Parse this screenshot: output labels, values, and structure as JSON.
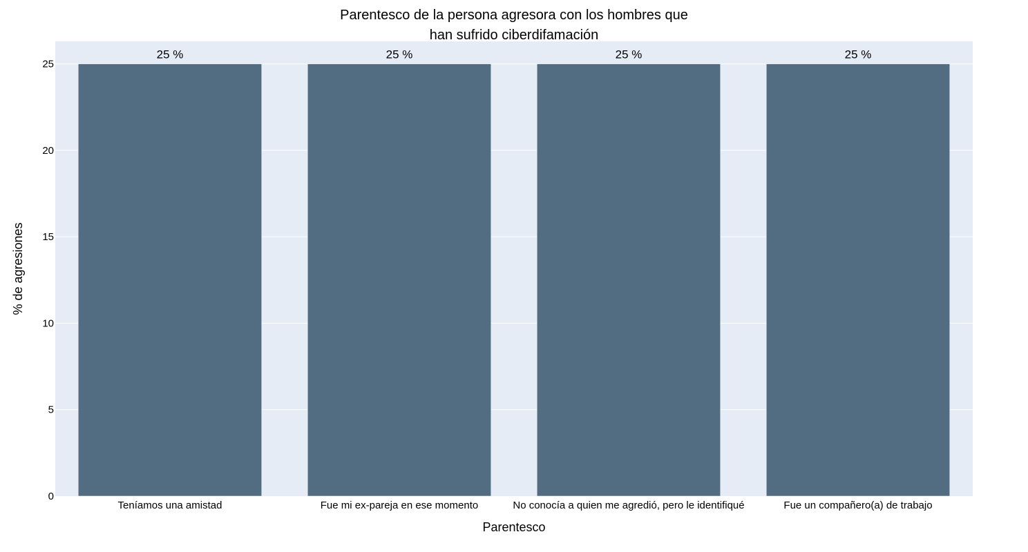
{
  "chart_data": {
    "type": "bar",
    "title_lines": [
      "Parentesco de la persona agresora con los hombres que",
      "han sufrido ciberdifamación"
    ],
    "xlabel": "Parentesco",
    "ylabel": "% de agresiones",
    "categories": [
      "Teníamos una amistad",
      "Fue mi ex-pareja en ese momento",
      "No conocía a quien me agredió, pero le identifiqué",
      "Fue un compañero(a) de trabajo"
    ],
    "values": [
      25,
      25,
      25,
      25
    ],
    "data_labels": [
      "25 %",
      "25 %",
      "25 %",
      "25 %"
    ],
    "ylim": [
      0,
      26.3
    ],
    "yticks": [
      0,
      5,
      10,
      15,
      20,
      25
    ],
    "grid": true,
    "legend": "none",
    "colors": {
      "bar": "#526d82",
      "plot_background": "#e5ecf6",
      "grid": "#ffffff"
    }
  }
}
